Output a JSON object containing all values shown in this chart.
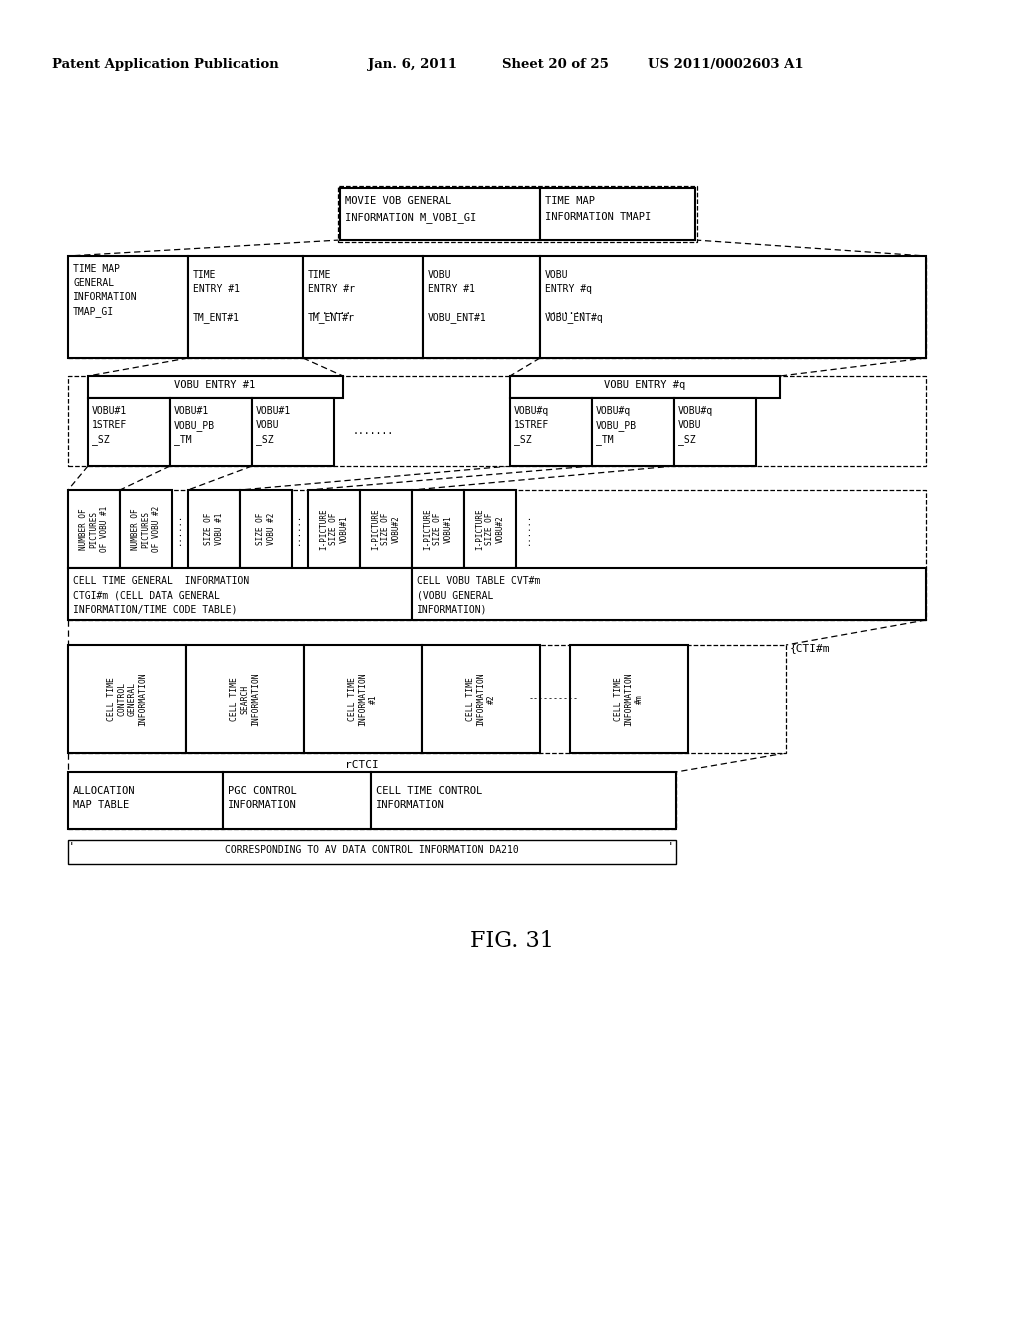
{
  "bg_color": "#ffffff",
  "header_text": "Patent Application Publication",
  "header_date": "Jan. 6, 2011",
  "header_sheet": "Sheet 20 of 25",
  "header_patent": "US 2011/0002603 A1",
  "figure_label": "FIG. 31"
}
